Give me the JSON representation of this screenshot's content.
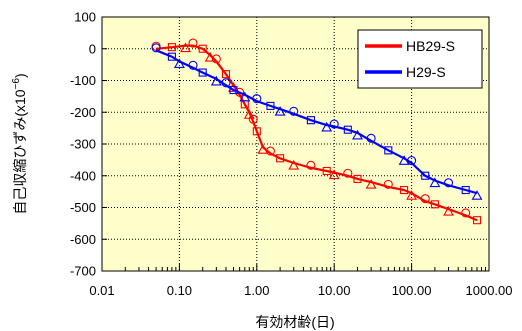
{
  "chart_data": {
    "type": "scatter",
    "xlabel": "有効材齢(日)",
    "ylabel": "自己収縮ひずみ(x10",
    "ylabel_sup": "−6",
    "ylabel_close": ")",
    "xscale": "log",
    "xlim": [
      0.01,
      1000
    ],
    "ylim": [
      -700,
      100
    ],
    "x_ticks": [
      0.01,
      0.1,
      1,
      10,
      100,
      1000
    ],
    "x_tick_labels": [
      "0.01",
      "0.10",
      "1.00",
      "10.00",
      "100.00",
      "1000.00"
    ],
    "y_ticks": [
      100,
      0,
      -100,
      -200,
      -300,
      -400,
      -500,
      -600,
      -700
    ],
    "y_tick_labels": [
      "100",
      "0",
      "-100",
      "-200",
      "-300",
      "-400",
      "-500",
      "-600",
      "-700"
    ],
    "grid": true,
    "plot_background": "#ffffcc",
    "legend_position": "top-right",
    "series": [
      {
        "name": "HB29-S",
        "color": "#ff0000",
        "markers": [
          "circle",
          "square",
          "triangle"
        ],
        "x": [
          0.05,
          0.08,
          0.12,
          0.15,
          0.2,
          0.25,
          0.3,
          0.4,
          0.5,
          0.6,
          0.7,
          0.8,
          0.9,
          1.0,
          1.2,
          1.5,
          2,
          3,
          5,
          8,
          10,
          15,
          20,
          30,
          50,
          80,
          100,
          150,
          200,
          300,
          500,
          700
        ],
        "y": [
          0,
          5,
          10,
          10,
          0,
          -20,
          -40,
          -80,
          -115,
          -145,
          -175,
          -200,
          -230,
          -260,
          -310,
          -330,
          -345,
          -360,
          -375,
          -385,
          -390,
          -400,
          -410,
          -420,
          -435,
          -445,
          -455,
          -480,
          -490,
          -505,
          -525,
          -540
        ]
      },
      {
        "name": "H29-S",
        "color": "#0000ff",
        "markers": [
          "circle",
          "square",
          "triangle"
        ],
        "x": [
          0.05,
          0.08,
          0.1,
          0.15,
          0.2,
          0.3,
          0.4,
          0.5,
          0.7,
          1.0,
          1.5,
          2,
          3,
          5,
          8,
          10,
          15,
          20,
          30,
          50,
          80,
          100,
          150,
          200,
          300,
          500,
          700
        ],
        "y": [
          -5,
          -25,
          -40,
          -60,
          -75,
          -95,
          -115,
          -130,
          -145,
          -165,
          -180,
          -190,
          -205,
          -225,
          -240,
          -245,
          -255,
          -265,
          -290,
          -320,
          -345,
          -360,
          -400,
          -415,
          -430,
          -445,
          -455
        ]
      }
    ]
  }
}
